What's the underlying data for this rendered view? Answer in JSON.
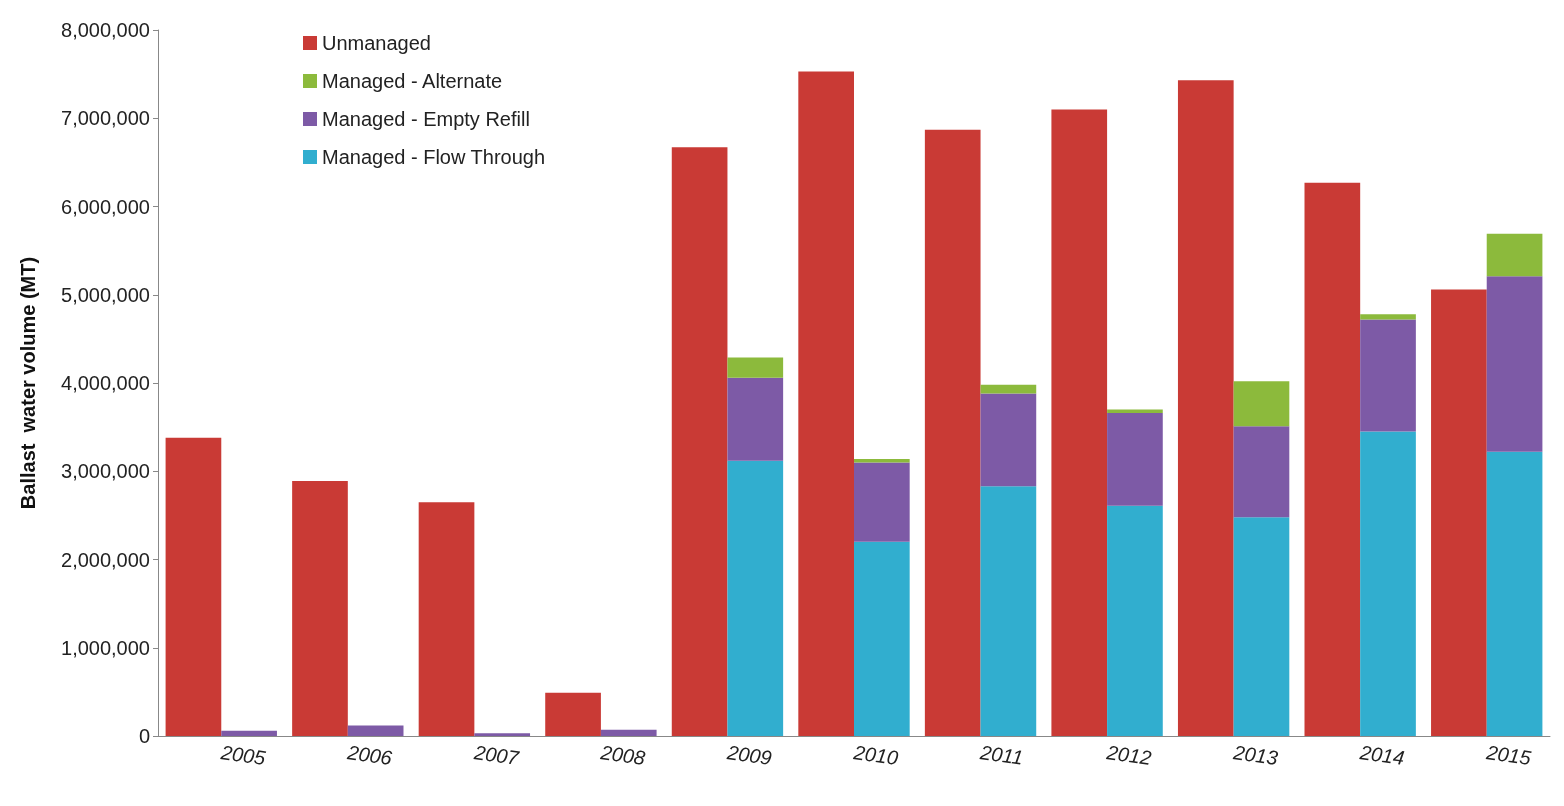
{
  "chart_data": {
    "type": "bar",
    "ylabel": "Ballast  water volume (MT)",
    "categories": [
      "2005",
      "2006",
      "2007",
      "2008",
      "2009",
      "2010",
      "2011",
      "2012",
      "2013",
      "2014",
      "2015"
    ],
    "legend": "top left",
    "grid": false,
    "ylim": [
      0,
      8000000
    ],
    "yticks": [
      0,
      {
        "value": 1000000,
        "label": "1,000,000"
      },
      {
        "value": 2000000,
        "label": "2,000,000"
      },
      {
        "value": 3000000,
        "label": "3,000,000"
      },
      {
        "value": 4000000,
        "label": "4,000,000"
      },
      {
        "value": 5000000,
        "label": "5,000,000"
      },
      {
        "value": 6000000,
        "label": "6,000,000"
      },
      {
        "value": 7000000,
        "label": "7,000,000"
      },
      {
        "value": 8000000,
        "label": "8,000,000"
      }
    ],
    "series": [
      {
        "name": "Unmanaged",
        "color": "#c93a35",
        "values": [
          3380000,
          2890000,
          2650000,
          490000,
          6670000,
          7530000,
          6870000,
          7100000,
          7430000,
          6270000,
          5060000
        ]
      },
      {
        "name": "Managed - Flow Through",
        "color": "#31aecf",
        "base": [
          null,
          null,
          null,
          null,
          0,
          0,
          0,
          0,
          0,
          0,
          0
        ],
        "values": [
          null,
          null,
          null,
          null,
          3120000,
          2200000,
          2830000,
          2610000,
          2480000,
          3450000,
          3220000
        ]
      },
      {
        "name": "Managed - Empty Refill",
        "color": "#7d5aa6",
        "base": [
          0,
          0,
          0,
          0,
          3120000,
          2200000,
          2830000,
          2610000,
          2480000,
          3450000,
          3220000
        ],
        "values": [
          60000,
          120000,
          30000,
          70000,
          940000,
          900000,
          1050000,
          1050000,
          1030000,
          1270000,
          1990000
        ]
      },
      {
        "name": "Managed - Alternate",
        "color": "#8cba3c",
        "base": [
          null,
          null,
          null,
          null,
          4060000,
          3100000,
          3880000,
          3660000,
          3510000,
          4720000,
          5210000
        ],
        "values": [
          null,
          null,
          null,
          null,
          230000,
          40000,
          100000,
          40000,
          510000,
          60000,
          480000
        ]
      }
    ]
  }
}
